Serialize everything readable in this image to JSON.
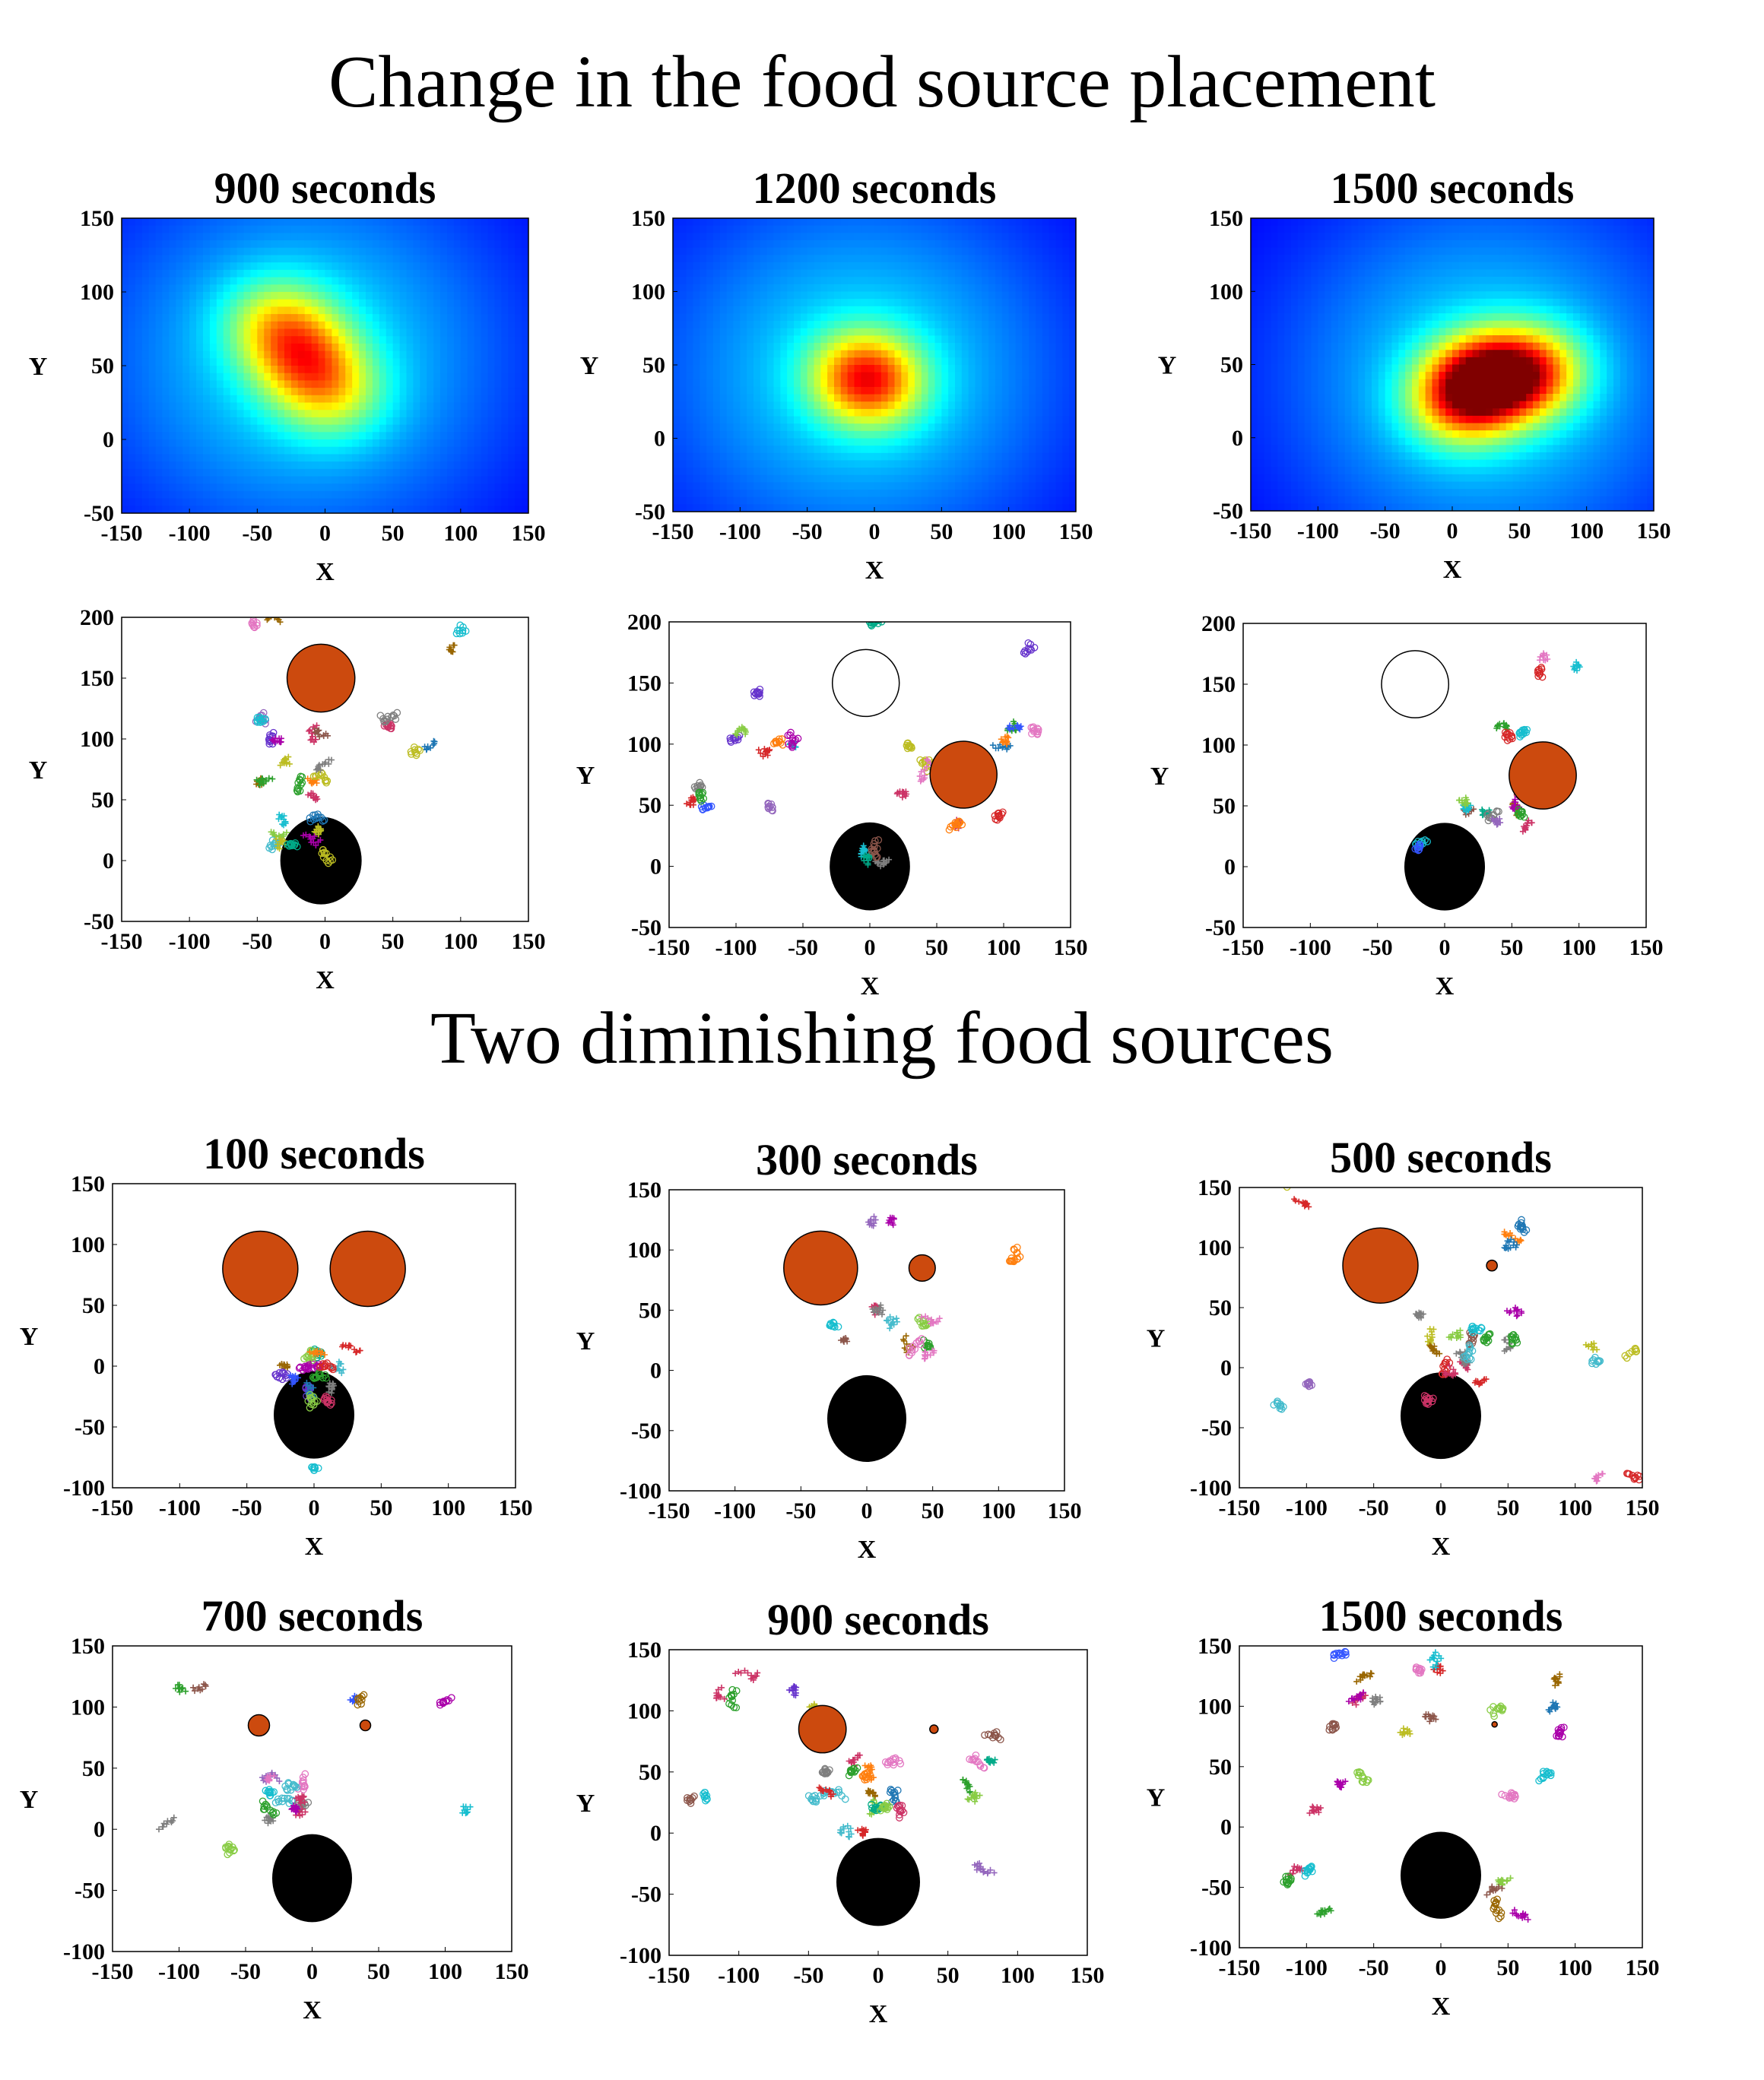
{
  "titles": {
    "section1": "Change in the food source placement",
    "section2": "Two diminishing food sources"
  },
  "chart_data": [
    {
      "id": "p1",
      "type": "heatmap",
      "title": "900 seconds",
      "xlabel": "X",
      "ylabel": "Y",
      "xlim": [
        -150,
        150
      ],
      "ylim": [
        -50,
        150
      ],
      "xticks": [
        "-150",
        "-100",
        "-50",
        "0",
        "50",
        "100",
        "150"
      ],
      "yticks": [
        "-50",
        "0",
        "50",
        "100",
        "150"
      ],
      "hotspots": [
        {
          "x": -15,
          "y": 55,
          "intensity": 0.55
        },
        {
          "x": -35,
          "y": 80,
          "intensity": 0.45
        },
        {
          "x": 5,
          "y": 30,
          "intensity": 0.4
        }
      ]
    },
    {
      "id": "p2",
      "type": "heatmap",
      "title": "1200 seconds",
      "xlabel": "X",
      "ylabel": "Y",
      "xlim": [
        -150,
        150
      ],
      "ylim": [
        -50,
        150
      ],
      "xticks": [
        "-150",
        "-100",
        "-50",
        "0",
        "50",
        "100",
        "150"
      ],
      "yticks": [
        "-50",
        "0",
        "50",
        "100",
        "150"
      ],
      "hotspots": [
        {
          "x": -10,
          "y": 45,
          "intensity": 0.5
        },
        {
          "x": 0,
          "y": 35,
          "intensity": 0.45
        }
      ]
    },
    {
      "id": "p3",
      "type": "heatmap",
      "title": "1500 seconds",
      "xlabel": "X",
      "ylabel": "Y",
      "xlim": [
        -150,
        150
      ],
      "ylim": [
        -50,
        150
      ],
      "xticks": [
        "-150",
        "-100",
        "-50",
        "0",
        "50",
        "100",
        "150"
      ],
      "yticks": [
        "-50",
        "0",
        "50",
        "100",
        "150"
      ],
      "hotspots": [
        {
          "x": 25,
          "y": 40,
          "intensity": 0.9
        },
        {
          "x": 60,
          "y": 45,
          "intensity": 0.7
        },
        {
          "x": 5,
          "y": 25,
          "intensity": 0.6
        }
      ]
    },
    {
      "id": "p4",
      "type": "scatter",
      "title": "",
      "xlabel": "X",
      "ylabel": "Y",
      "xlim": [
        -150,
        150
      ],
      "ylim": [
        -50,
        200
      ],
      "xticks": [
        "-150",
        "-100",
        "-50",
        "0",
        "50",
        "100",
        "150"
      ],
      "yticks": [
        "-50",
        "0",
        "50",
        "100",
        "150",
        "200"
      ],
      "nest": {
        "x": -3,
        "y": 0,
        "r": 30
      },
      "sources": [
        {
          "x": -3,
          "y": 150,
          "r": 25,
          "type": "food"
        }
      ],
      "trails": [
        {
          "x": -25,
          "y": 90,
          "spread": 35,
          "n": 160
        },
        {
          "x": -20,
          "y": 30,
          "spread": 30,
          "n": 120
        },
        {
          "x": 40,
          "y": 110,
          "spread": 20,
          "n": 25
        },
        {
          "x": 80,
          "y": 85,
          "spread": 14,
          "n": 18
        },
        {
          "x": -40,
          "y": 190,
          "spread": 15,
          "n": 18
        },
        {
          "x": 90,
          "y": 190,
          "spread": 15,
          "n": 18
        }
      ]
    },
    {
      "id": "p5",
      "type": "scatter",
      "title": "",
      "xlabel": "X",
      "ylabel": "Y",
      "xlim": [
        -150,
        150
      ],
      "ylim": [
        -50,
        200
      ],
      "xticks": [
        "-150",
        "-100",
        "-50",
        "0",
        "50",
        "100",
        "150"
      ],
      "yticks": [
        "-50",
        "0",
        "50",
        "100",
        "150",
        "200"
      ],
      "nest": {
        "x": 0,
        "y": 0,
        "r": 30
      },
      "sources": [
        {
          "x": -3,
          "y": 150,
          "r": 25,
          "type": "empty"
        },
        {
          "x": 70,
          "y": 75,
          "r": 25,
          "type": "food"
        }
      ],
      "trails": [
        {
          "x": 0,
          "y": 10,
          "spread": 18,
          "n": 50
        },
        {
          "x": -100,
          "y": 80,
          "spread": 40,
          "n": 80
        },
        {
          "x": -60,
          "y": 120,
          "spread": 40,
          "n": 60
        },
        {
          "x": 30,
          "y": 80,
          "spread": 30,
          "n": 60
        },
        {
          "x": 100,
          "y": 120,
          "spread": 35,
          "n": 60
        },
        {
          "x": 80,
          "y": 20,
          "spread": 30,
          "n": 40
        },
        {
          "x": -10,
          "y": 190,
          "spread": 15,
          "n": 14
        },
        {
          "x": 125,
          "y": 190,
          "spread": 10,
          "n": 10
        }
      ]
    },
    {
      "id": "p6",
      "type": "scatter",
      "title": "",
      "xlabel": "X",
      "ylabel": "Y",
      "xlim": [
        -150,
        150
      ],
      "ylim": [
        -50,
        200
      ],
      "xticks": [
        "-150",
        "-100",
        "-50",
        "0",
        "50",
        "100",
        "150"
      ],
      "yticks": [
        "-50",
        "0",
        "50",
        "100",
        "150",
        "200"
      ],
      "nest": {
        "x": 0,
        "y": 0,
        "r": 30
      },
      "sources": [
        {
          "x": -22,
          "y": 150,
          "r": 25,
          "type": "empty"
        },
        {
          "x": 73,
          "y": 75,
          "r": 25,
          "type": "food"
        }
      ],
      "trails": [
        {
          "x": 40,
          "y": 45,
          "spread": 28,
          "n": 140
        },
        {
          "x": -20,
          "y": 15,
          "spread": 12,
          "n": 20
        },
        {
          "x": 40,
          "y": 130,
          "spread": 28,
          "n": 40
        },
        {
          "x": 80,
          "y": 175,
          "spread": 25,
          "n": 30
        }
      ]
    },
    {
      "id": "p7",
      "type": "scatter",
      "title": "100 seconds",
      "xlabel": "X",
      "ylabel": "Y",
      "xlim": [
        -150,
        150
      ],
      "ylim": [
        -100,
        150
      ],
      "xticks": [
        "-150",
        "-100",
        "-50",
        "0",
        "50",
        "100",
        "150"
      ],
      "yticks": [
        "-100",
        "-50",
        "0",
        "50",
        "100",
        "150"
      ],
      "nest": {
        "x": 0,
        "y": -40,
        "r": 30
      },
      "sources": [
        {
          "x": -40,
          "y": 80,
          "r": 28,
          "type": "food"
        },
        {
          "x": 40,
          "y": 80,
          "r": 28,
          "type": "food"
        }
      ],
      "trails": [
        {
          "x": 0,
          "y": -5,
          "spread": 30,
          "n": 200
        },
        {
          "x": 0,
          "y": -80,
          "spread": 6,
          "n": 10
        }
      ]
    },
    {
      "id": "p8",
      "type": "scatter",
      "title": "300 seconds",
      "xlabel": "X",
      "ylabel": "Y",
      "xlim": [
        -150,
        150
      ],
      "ylim": [
        -100,
        150
      ],
      "xticks": [
        "-150",
        "-100",
        "-50",
        "0",
        "50",
        "100",
        "150"
      ],
      "yticks": [
        "-100",
        "-50",
        "0",
        "50",
        "100",
        "150"
      ],
      "nest": {
        "x": 0,
        "y": -40,
        "r": 30
      },
      "sources": [
        {
          "x": -35,
          "y": 85,
          "r": 28,
          "type": "food"
        },
        {
          "x": 42,
          "y": 85,
          "r": 10,
          "type": "food"
        }
      ],
      "trails": [
        {
          "x": 25,
          "y": 30,
          "spread": 25,
          "n": 110
        },
        {
          "x": -40,
          "y": 80,
          "spread": 10,
          "n": 20
        },
        {
          "x": -20,
          "y": 30,
          "spread": 10,
          "n": 18
        },
        {
          "x": 20,
          "y": 140,
          "spread": 35,
          "n": 30
        },
        {
          "x": 120,
          "y": 100,
          "spread": 12,
          "n": 15
        }
      ]
    },
    {
      "id": "p9",
      "type": "scatter",
      "title": "500 seconds",
      "xlabel": "X",
      "ylabel": "Y",
      "xlim": [
        -150,
        150
      ],
      "ylim": [
        -100,
        150
      ],
      "xticks": [
        "-150",
        "-100",
        "-50",
        "0",
        "50",
        "100",
        "150"
      ],
      "yticks": [
        "-100",
        "-50",
        "0",
        "50",
        "100",
        "150"
      ],
      "nest": {
        "x": 0,
        "y": -40,
        "r": 30
      },
      "sources": [
        {
          "x": -45,
          "y": 85,
          "r": 28,
          "type": "food"
        },
        {
          "x": 38,
          "y": 85,
          "r": 4,
          "type": "food"
        }
      ],
      "trails": [
        {
          "x": 20,
          "y": 10,
          "spread": 50,
          "n": 220
        },
        {
          "x": -110,
          "y": -20,
          "spread": 15,
          "n": 20
        },
        {
          "x": 120,
          "y": 0,
          "spread": 22,
          "n": 30
        },
        {
          "x": -110,
          "y": 140,
          "spread": 25,
          "n": 25
        },
        {
          "x": 130,
          "y": -80,
          "spread": 18,
          "n": 20
        },
        {
          "x": 70,
          "y": 100,
          "spread": 30,
          "n": 40
        }
      ]
    },
    {
      "id": "p10",
      "type": "scatter",
      "title": "700 seconds",
      "xlabel": "X",
      "ylabel": "Y",
      "xlim": [
        -150,
        150
      ],
      "ylim": [
        -100,
        150
      ],
      "xticks": [
        "-150",
        "-100",
        "-50",
        "0",
        "50",
        "100",
        "150"
      ],
      "yticks": [
        "-100",
        "-50",
        "0",
        "50",
        "100",
        "150"
      ],
      "nest": {
        "x": 0,
        "y": -40,
        "r": 30
      },
      "sources": [
        {
          "x": -40,
          "y": 85,
          "r": 8,
          "type": "food"
        },
        {
          "x": 40,
          "y": 85,
          "r": 4,
          "type": "food"
        }
      ],
      "trails": [
        {
          "x": -20,
          "y": 30,
          "spread": 22,
          "n": 140
        },
        {
          "x": -90,
          "y": 125,
          "spread": 22,
          "n": 18
        },
        {
          "x": 40,
          "y": 110,
          "spread": 15,
          "n": 18
        },
        {
          "x": 105,
          "y": 100,
          "spread": 8,
          "n": 10
        },
        {
          "x": -110,
          "y": 0,
          "spread": 8,
          "n": 10
        },
        {
          "x": -60,
          "y": -20,
          "spread": 12,
          "n": 12
        },
        {
          "x": 125,
          "y": 20,
          "spread": 10,
          "n": 10
        }
      ]
    },
    {
      "id": "p11",
      "type": "scatter",
      "title": "900 seconds",
      "xlabel": "X",
      "ylabel": "Y",
      "xlim": [
        -150,
        150
      ],
      "ylim": [
        -100,
        150
      ],
      "xticks": [
        "-150",
        "-100",
        "-50",
        "0",
        "50",
        "100",
        "150"
      ],
      "yticks": [
        "-100",
        "-50",
        "0",
        "50",
        "100",
        "150"
      ],
      "nest": {
        "x": 0,
        "y": -40,
        "r": 30
      },
      "sources": [
        {
          "x": -40,
          "y": 85,
          "r": 17,
          "type": "food"
        },
        {
          "x": 40,
          "y": 85,
          "r": 3,
          "type": "food"
        }
      ],
      "trails": [
        {
          "x": -10,
          "y": 30,
          "spread": 40,
          "n": 200
        },
        {
          "x": -80,
          "y": 130,
          "spread": 45,
          "n": 60
        },
        {
          "x": 80,
          "y": 60,
          "spread": 45,
          "n": 60
        },
        {
          "x": -130,
          "y": 30,
          "spread": 15,
          "n": 18
        },
        {
          "x": 80,
          "y": -40,
          "spread": 15,
          "n": 15
        }
      ]
    },
    {
      "id": "p12",
      "type": "scatter",
      "title": "1500 seconds",
      "xlabel": "X",
      "ylabel": "Y",
      "xlim": [
        -150,
        150
      ],
      "ylim": [
        -100,
        150
      ],
      "xticks": [
        "-150",
        "-100",
        "-50",
        "0",
        "50",
        "100",
        "150"
      ],
      "yticks": [
        "-100",
        "-50",
        "0",
        "50",
        "100",
        "150"
      ],
      "nest": {
        "x": 0,
        "y": -40,
        "r": 30
      },
      "sources": [
        {
          "x": 40,
          "y": 85,
          "r": 2,
          "type": "food"
        }
      ],
      "trails": [
        {
          "x": -40,
          "y": 110,
          "spread": 50,
          "n": 130
        },
        {
          "x": 60,
          "y": 100,
          "spread": 35,
          "n": 50
        },
        {
          "x": -100,
          "y": -60,
          "spread": 35,
          "n": 50
        },
        {
          "x": 60,
          "y": -60,
          "spread": 40,
          "n": 50
        },
        {
          "x": -80,
          "y": 20,
          "spread": 35,
          "n": 40
        },
        {
          "x": 70,
          "y": 20,
          "spread": 25,
          "n": 25
        }
      ]
    }
  ]
}
